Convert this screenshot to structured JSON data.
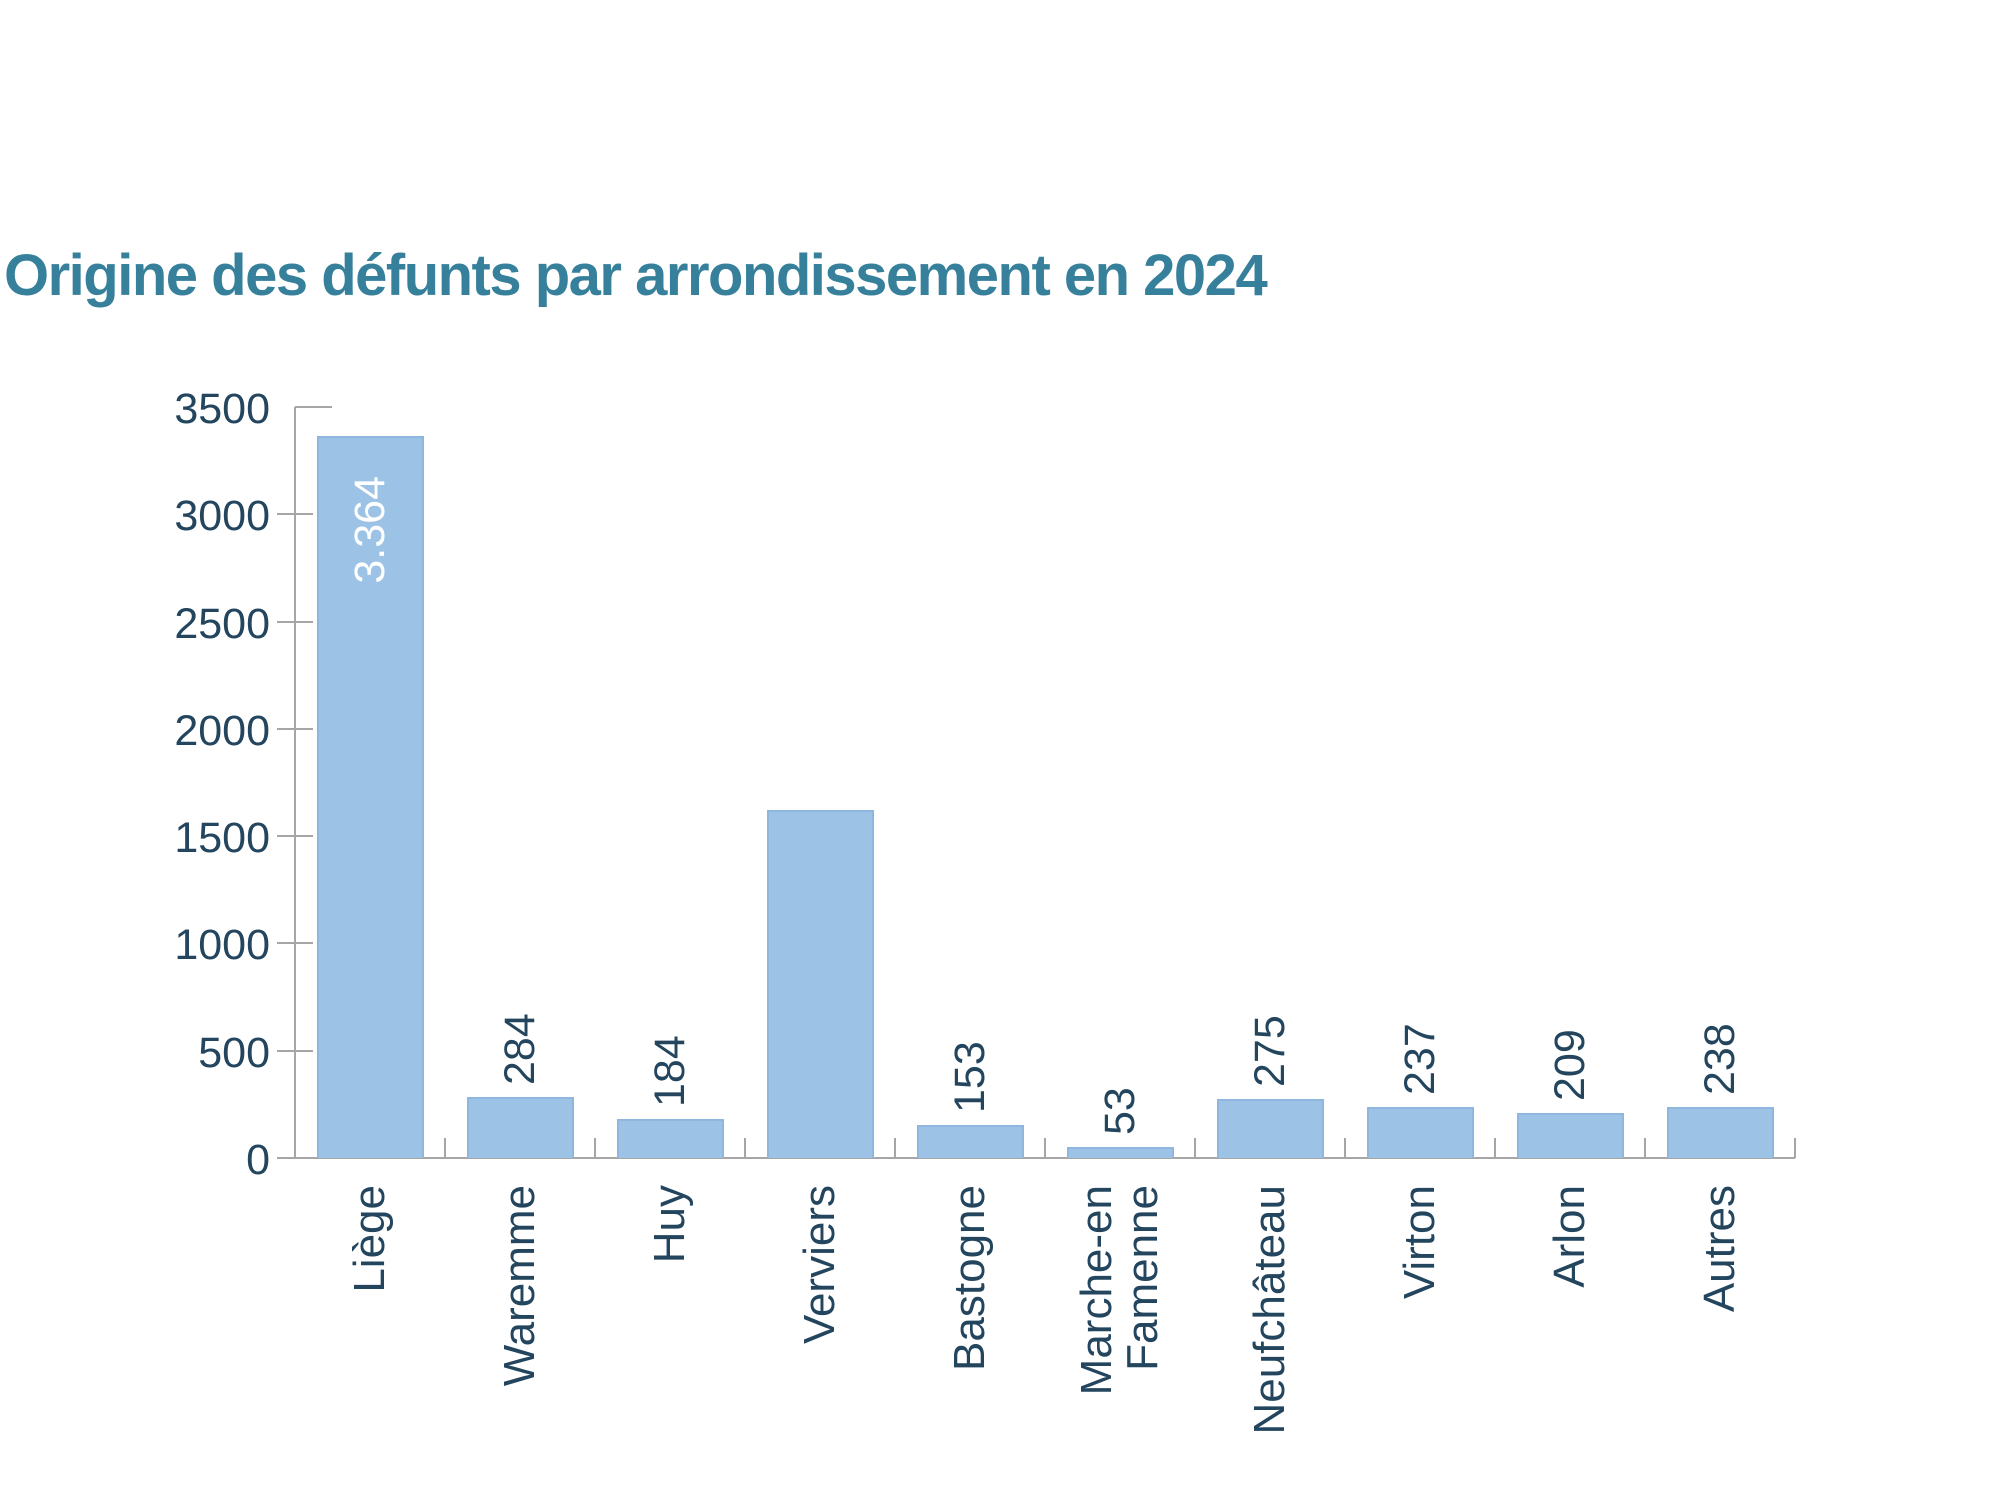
{
  "title": {
    "text": "Origine des défunts par arrondissement en 2024"
  },
  "colors": {
    "title": "#36809B",
    "axis_text": "#23455E",
    "bar_fill": "#9CC3E6",
    "bar_border": "#8FB6DF",
    "axis_line": "#A6A6A6",
    "inside_label": "#FFFFFF"
  },
  "chart_data": {
    "type": "bar",
    "title": "Origine des défunts par arrondissement en 2024",
    "categories": [
      "Liège",
      "Waremme",
      "Huy",
      "Verviers",
      "Bastogne",
      "Marche-en\nFamenne",
      "Neufchâteau",
      "Virton",
      "Arlon",
      "Autres"
    ],
    "values": [
      3364,
      284,
      184,
      1620,
      153,
      53,
      275,
      237,
      209,
      238
    ],
    "data_labels": [
      "3.364",
      "284",
      "184",
      "",
      "153",
      "53",
      "275",
      "237",
      "209",
      "238"
    ],
    "data_label_placement": [
      "inside-end",
      "outside-end",
      "outside-end",
      "none",
      "outside-end",
      "outside-end",
      "outside-end",
      "outside-end",
      "outside-end",
      "outside-end"
    ],
    "xlabel": "",
    "ylabel": "",
    "ylim": [
      0,
      3500
    ],
    "ytick_step": 500,
    "yticks": [
      0,
      500,
      1000,
      1500,
      2000,
      2500,
      3000,
      3500
    ],
    "grid": false,
    "legend": false,
    "bar_orientation": "vertical",
    "label_rotation_deg": 90,
    "note_verviers_value_estimated_from_bar_height": true
  }
}
